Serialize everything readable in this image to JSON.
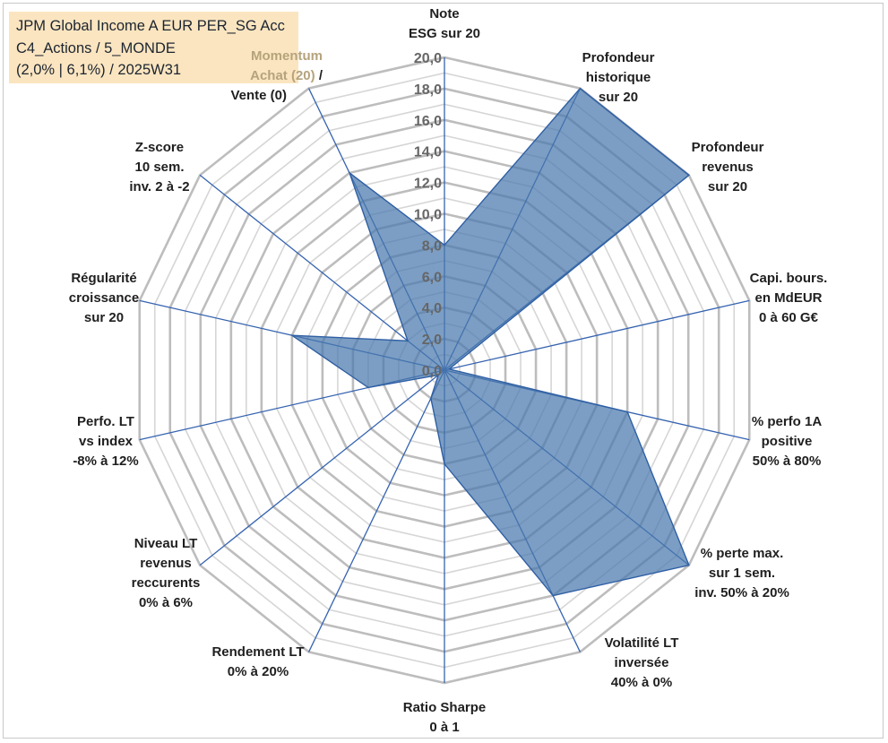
{
  "title_box": {
    "line1": "JPM Global Income A EUR PER_SG Acc",
    "line2": "C4_Actions / 5_MONDE",
    "line3": "(2,0% | 6,1%) / 2025W31"
  },
  "colors": {
    "fill": "#4a78ad",
    "stroke": "#2f5fa3",
    "spoke": "#3563b0",
    "grid_outer": "#bdbdbd",
    "grid_inner": "#d6d6d6",
    "title_bg": "#fbe5c0",
    "muted_label": "#b5a37c"
  },
  "chart_data": {
    "type": "radar",
    "rmin": 0,
    "rmax": 20,
    "tick_step": 1,
    "tick_labels": [
      "0,0",
      "2,0",
      "4,0",
      "6,0",
      "8,0",
      "10,0",
      "12,0",
      "14,0",
      "16,0",
      "18,0",
      "20,0"
    ],
    "axes": [
      {
        "label": [
          "Note",
          "ESG sur 20"
        ],
        "value": 8.0
      },
      {
        "label": [
          "Profondeur",
          "historique",
          "sur 20"
        ],
        "value": 20.0
      },
      {
        "label": [
          "Profondeur",
          "revenus",
          "sur 20"
        ],
        "value": 20.0
      },
      {
        "label": [
          "Capi. bours.",
          "en MdEUR",
          "0 à 60 G€"
        ],
        "value": 0.3
      },
      {
        "label": [
          "% perfo 1A",
          "positive",
          "50% à 80%"
        ],
        "value": 12.0
      },
      {
        "label": [
          "% perte max.",
          "sur 1 sem.",
          "inv. 50% à 20%"
        ],
        "value": 20.0
      },
      {
        "label": [
          "Volatilité LT",
          "inversée",
          "40% à 0%"
        ],
        "value": 16.0
      },
      {
        "label": [
          "Ratio Sharpe",
          "0 à 1"
        ],
        "value": 6.0
      },
      {
        "label": [
          "Rendement LT",
          "0% à 20%"
        ],
        "value": 2.0
      },
      {
        "label": [
          "Niveau LT",
          "revenus",
          "reccurents",
          "0% à 6%"
        ],
        "value": 0.5
      },
      {
        "label": [
          "Perfo. LT",
          "vs index",
          "-8% à 12%"
        ],
        "value": 5.0
      },
      {
        "label": [
          "Régularité",
          "croissance",
          "sur 20"
        ],
        "value": 10.0
      },
      {
        "label": [
          "Z-score",
          "10 sem.",
          "inv. 2 à -2"
        ],
        "value": 3.0
      },
      {
        "label_muted": "Momentum",
        "label_muted2": "Achat (20)",
        "label_suffix": " /",
        "label": [
          "Vente (0)"
        ],
        "value": 14.0
      }
    ]
  }
}
